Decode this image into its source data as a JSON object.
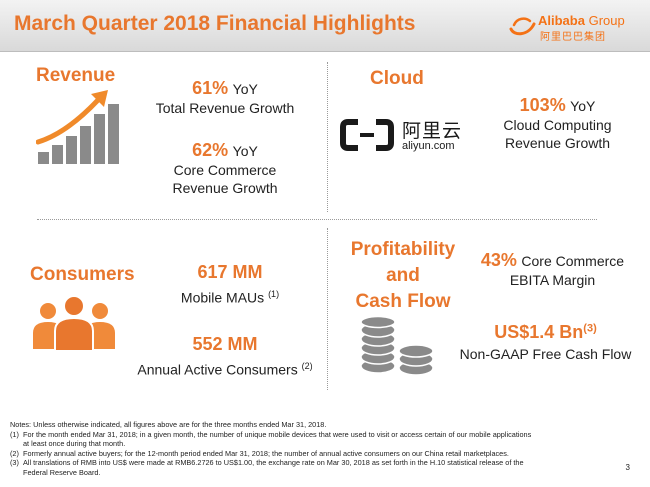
{
  "header": {
    "title": "March Quarter 2018 Financial Highlights",
    "logo_brand": "Alibaba",
    "logo_group": "Group",
    "logo_cn": "阿里巴巴集团"
  },
  "revenue": {
    "heading": "Revenue",
    "stat1_value": "61%",
    "stat1_suffix": "YoY",
    "stat1_label": "Total Revenue Growth",
    "stat2_value": "62%",
    "stat2_suffix": "YoY",
    "stat2_label_line1": "Core Commerce",
    "stat2_label_line2": "Revenue Growth",
    "icon": "growth-bar-chart-icon"
  },
  "cloud": {
    "heading": "Cloud",
    "logo_cn": "阿里云",
    "logo_url": "aliyun.com",
    "stat_value": "103%",
    "stat_suffix": "YoY",
    "stat_label_line1": "Cloud Computing",
    "stat_label_line2": "Revenue Growth"
  },
  "consumers": {
    "heading": "Consumers",
    "stat1_value": "617 MM",
    "stat1_label": "Mobile MAUs",
    "stat1_note": "(1)",
    "stat2_value": "552 MM",
    "stat2_label": "Annual Active Consumers",
    "stat2_note": "(2)",
    "icon": "people-group-icon"
  },
  "profitability": {
    "heading_line1": "Profitability",
    "heading_line2": "and",
    "heading_line3": "Cash Flow",
    "stat1_value": "43%",
    "stat1_label_line1": "Core Commerce",
    "stat1_label_line2": "EBITA Margin",
    "stat2_value": "US$1.4 Bn",
    "stat2_note": "(3)",
    "stat2_label": "Non-GAAP Free Cash Flow",
    "icon": "coin-stacks-icon"
  },
  "notes": {
    "intro": "Notes: Unless otherwise indicated, all figures above are for the three months ended Mar 31, 2018.",
    "n1_num": "(1)",
    "n1_line1": "For the month ended Mar 31, 2018; in a given month, the number of unique mobile devices that were used to visit or access certain of our mobile applications",
    "n1_line2": "at least once during that month.",
    "n2_num": "(2)",
    "n2_text": "Formerly annual active buyers; for the 12-month period ended Mar 31, 2018; the number of annual active consumers on our China retail marketplaces.",
    "n3_num": "(3)",
    "n3_line1": "All translations of RMB into US$ were made at RMB6.2726 to US$1.00, the exchange rate on Mar 30, 2018 as set forth in the H.10 statistical release of the",
    "n3_line2": "Federal Reserve Board."
  },
  "page_number": "3",
  "colors": {
    "accent": "#e8772e",
    "icon_gray": "#8a8a8a"
  }
}
